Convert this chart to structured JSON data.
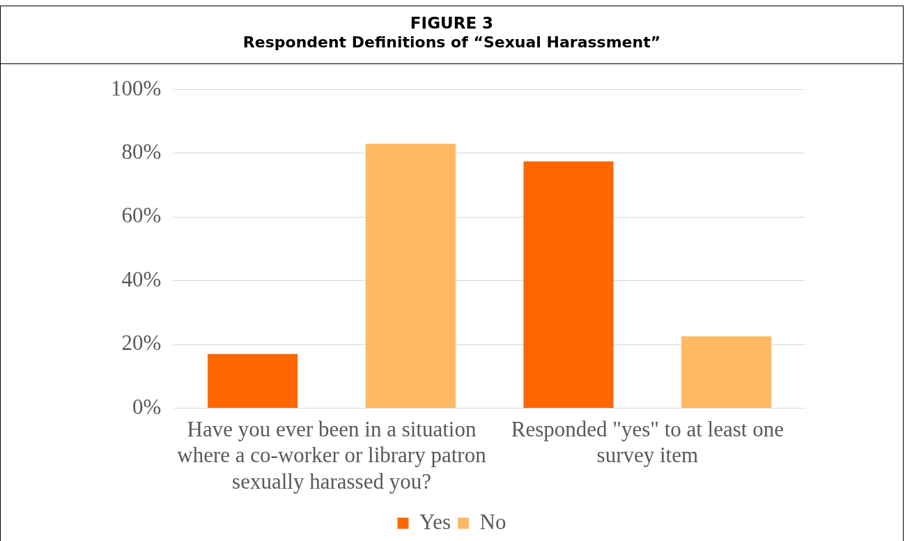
{
  "chart_data": {
    "type": "bar",
    "title": "FIGURE 3",
    "subtitle": "Respondent Definitions of “Sexual Harassment”",
    "categories": [
      "Have you ever been in a situation where a co-worker or library patron sexually harassed you?",
      "Responded \"yes\" to at least one survey item"
    ],
    "series": [
      {
        "name": "Yes",
        "color": "#ff6600",
        "values": [
          17,
          77.5
        ]
      },
      {
        "name": "No",
        "color": "#ffb963",
        "values": [
          83,
          22.5
        ]
      }
    ],
    "ylim": [
      0,
      100
    ],
    "yticks": [
      {
        "value": 0,
        "label": "0%"
      },
      {
        "value": 20,
        "label": "20%"
      },
      {
        "value": 40,
        "label": "40%"
      },
      {
        "value": 60,
        "label": "60%"
      },
      {
        "value": 80,
        "label": "80%"
      },
      {
        "value": 100,
        "label": "100%"
      }
    ],
    "grid": "y",
    "legend": "bottom"
  }
}
